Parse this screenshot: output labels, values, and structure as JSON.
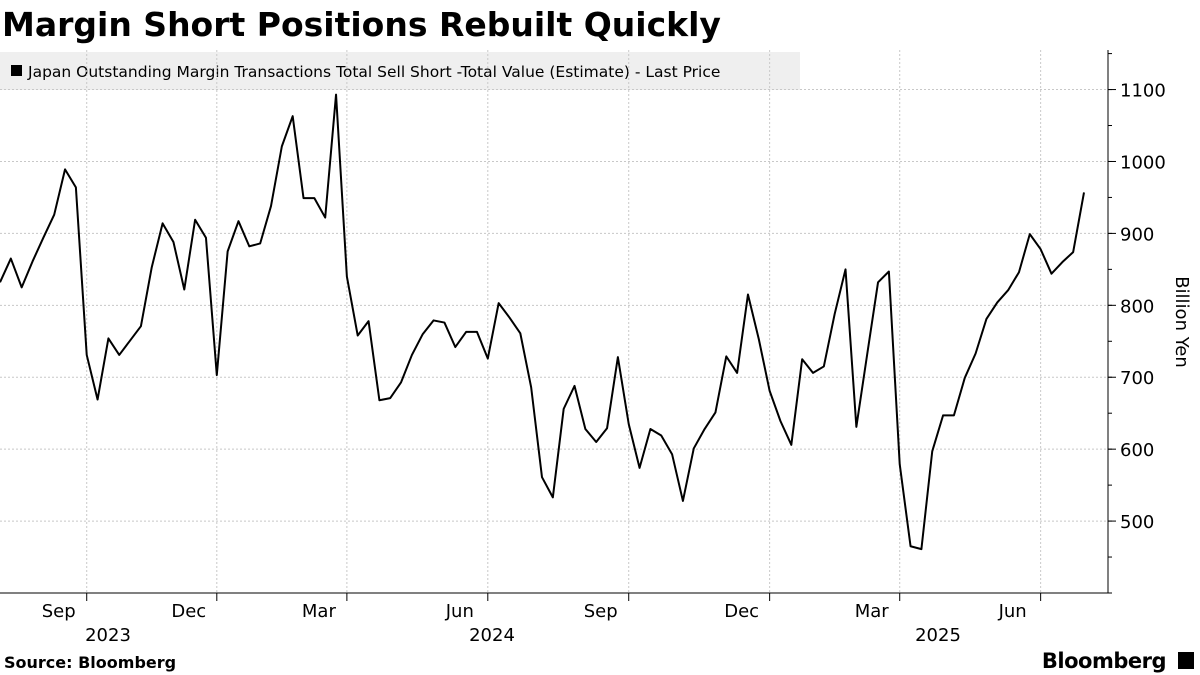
{
  "chart_data": {
    "type": "line",
    "title": "Margin Short Positions Rebuilt Quickly",
    "y_axis_label": "Billion Yen",
    "source": "Source: Bloomberg",
    "brand": "Bloomberg",
    "x_group_labels": [
      "2023",
      "2024",
      "2025"
    ],
    "categories": [
      null,
      null,
      null,
      null,
      null,
      null,
      null,
      null,
      "Sep",
      null,
      null,
      null,
      null,
      null,
      null,
      null,
      null,
      null,
      null,
      null,
      "Dec",
      null,
      null,
      null,
      null,
      null,
      null,
      null,
      null,
      null,
      null,
      null,
      "Mar",
      null,
      null,
      null,
      null,
      null,
      null,
      null,
      null,
      null,
      null,
      null,
      null,
      "Jun",
      null,
      null,
      null,
      null,
      null,
      null,
      null,
      null,
      null,
      null,
      null,
      null,
      "Sep",
      null,
      null,
      null,
      null,
      null,
      null,
      null,
      null,
      null,
      null,
      null,
      null,
      "Dec",
      null,
      null,
      null,
      null,
      null,
      null,
      null,
      null,
      null,
      null,
      null,
      "Mar",
      null,
      null,
      null,
      null,
      null,
      null,
      null,
      null,
      null,
      null,
      null,
      null,
      "Jun",
      null,
      null,
      null,
      null
    ],
    "series": [
      {
        "name": "Japan Outstanding Margin Transactions Total Sell Short -Total Value (Estimate) - Last Price",
        "color": "#000000",
        "values": [
          832,
          865,
          825,
          861,
          894,
          926,
          989,
          964,
          731,
          669,
          754,
          731,
          751,
          771,
          853,
          914,
          888,
          822,
          919,
          894,
          703,
          875,
          917,
          882,
          886,
          938,
          1021,
          1063,
          949,
          949,
          922,
          1093,
          840,
          758,
          778,
          668,
          671,
          693,
          731,
          760,
          779,
          776,
          742,
          763,
          763,
          726,
          803,
          783,
          761,
          686,
          561,
          533,
          656,
          688,
          628,
          610,
          629,
          728,
          635,
          574,
          628,
          619,
          593,
          528,
          601,
          628,
          651,
          729,
          706,
          815,
          753,
          681,
          639,
          606,
          725,
          706,
          715,
          788,
          850,
          631,
          732,
          832,
          847,
          579,
          465,
          461,
          597,
          647,
          647,
          699,
          733,
          781,
          804,
          821,
          846,
          899,
          878,
          844,
          860,
          874,
          957
        ]
      }
    ],
    "ylim": [
      400,
      1155
    ],
    "yticks": [
      500,
      600,
      700,
      800,
      900,
      1000,
      1100
    ],
    "grid": true,
    "y_axis_side": "right"
  }
}
